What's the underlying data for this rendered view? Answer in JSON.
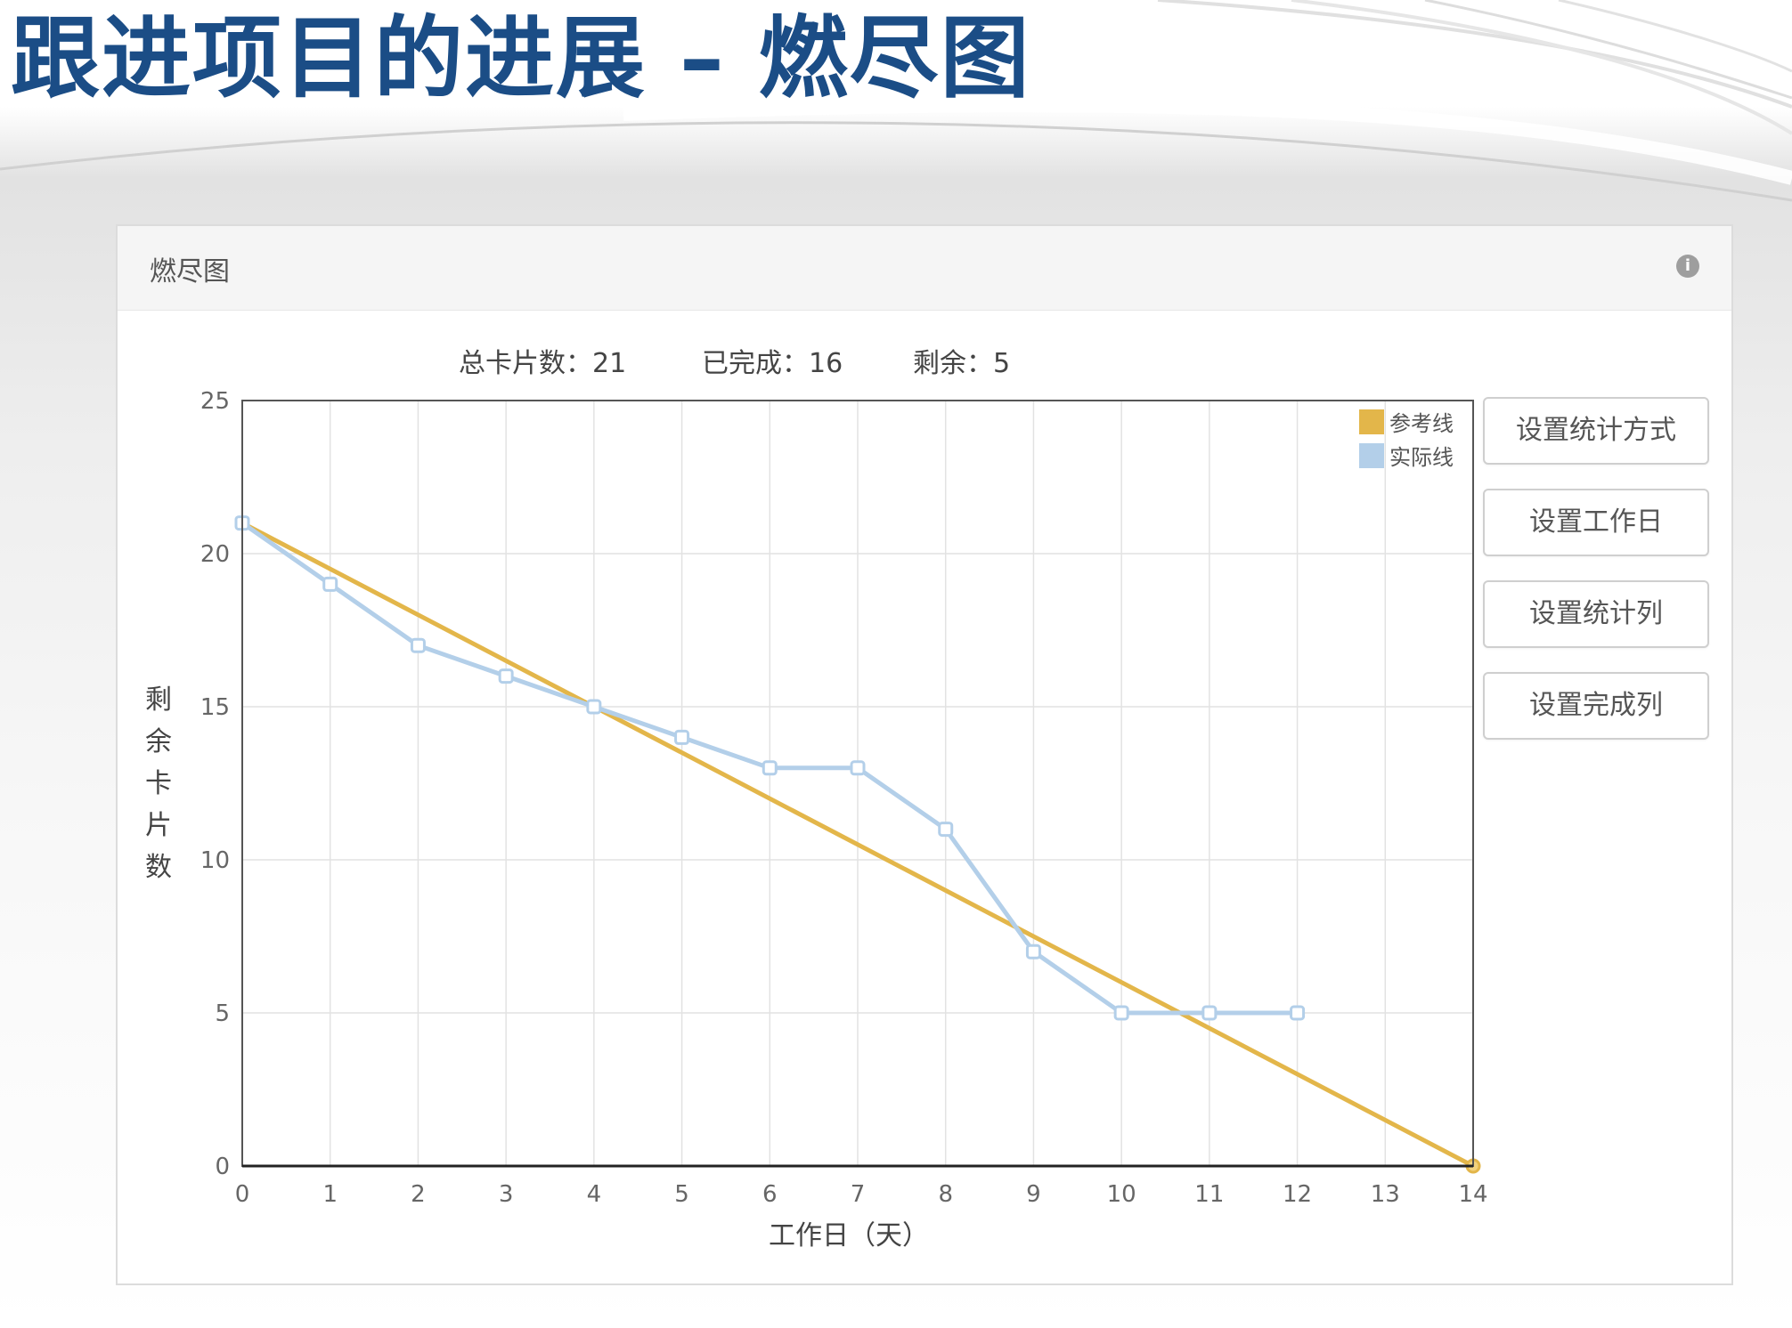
{
  "slide": {
    "title": "跟进项目的进展 – 燃尽图"
  },
  "panel": {
    "title": "燃尽图",
    "info_icon": "info-icon"
  },
  "summary": {
    "total_label": "总卡片数：21",
    "done_label": "已完成：16",
    "remaining_label": "剩余：5"
  },
  "buttons": {
    "set_stat_method": "设置统计方式",
    "set_workdays": "设置工作日",
    "set_stat_columns": "设置统计列",
    "set_done_columns": "设置完成列"
  },
  "chart_data": {
    "type": "line",
    "xlabel": "工作日（天）",
    "ylabel": "剩余卡片数",
    "xlim": [
      0,
      14
    ],
    "ylim": [
      0,
      25
    ],
    "xticks": [
      0,
      1,
      2,
      3,
      4,
      5,
      6,
      7,
      8,
      9,
      10,
      11,
      12,
      13,
      14
    ],
    "yticks": [
      0,
      5,
      10,
      15,
      20,
      25
    ],
    "grid": true,
    "legend_position": "top-right",
    "series": [
      {
        "name": "参考线",
        "color": "#e3b64a",
        "x": [
          0,
          14
        ],
        "y": [
          21,
          0
        ]
      },
      {
        "name": "实际线",
        "color": "#b3cfe9",
        "x": [
          0,
          1,
          2,
          3,
          4,
          5,
          6,
          7,
          8,
          9,
          10,
          11,
          12
        ],
        "y": [
          21,
          19,
          17,
          16,
          15,
          14,
          13,
          13,
          11,
          7,
          5,
          5,
          5
        ]
      }
    ]
  }
}
